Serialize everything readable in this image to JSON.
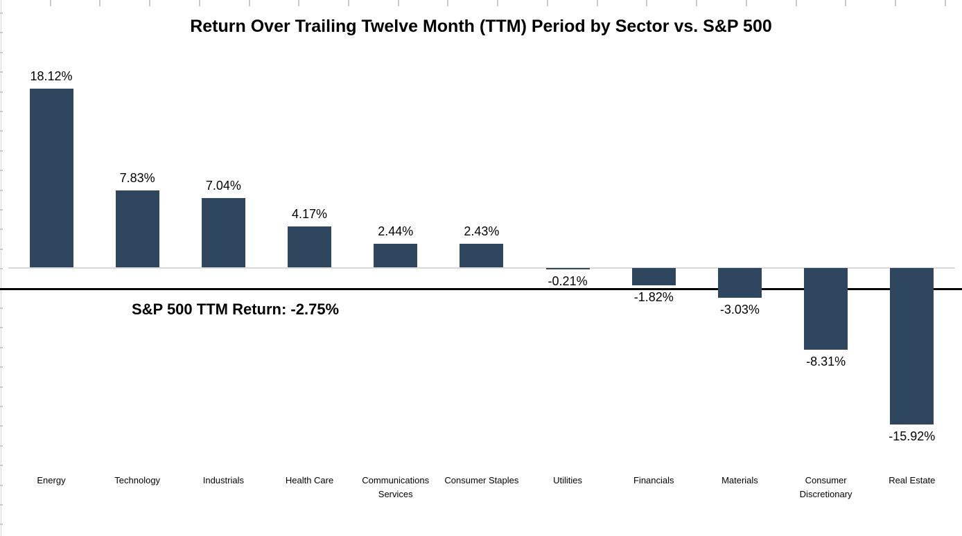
{
  "page": {
    "background": "#ffffff"
  },
  "chart_data": {
    "type": "bar",
    "title": "Return Over Trailing Twelve Month (TTM) Period by Sector vs. S&P 500",
    "categories": [
      "Energy",
      "Technology",
      "Industrials",
      "Health Care",
      "Communications Services",
      "Consumer Staples",
      "Utilities",
      "Financials",
      "Materials",
      "Consumer Discretionary",
      "Real Estate"
    ],
    "values": [
      18.12,
      7.83,
      7.04,
      4.17,
      2.44,
      2.43,
      -0.21,
      -1.82,
      -3.03,
      -8.31,
      -15.92
    ],
    "value_labels": [
      "18.12%",
      "7.83%",
      "7.04%",
      "4.17%",
      "2.44%",
      "2.43%",
      "-0.21%",
      "-1.82%",
      "-3.03%",
      "-8.31%",
      "-15.92%"
    ],
    "benchmark": {
      "label": "S&P 500 TTM Return: -2.75%",
      "value": -2.75
    },
    "bar_color": "#2F465F",
    "axis": {
      "zero_line_color": "#d9d9d9",
      "benchmark_line_color": "#000000"
    },
    "xlabel": "",
    "ylabel": "",
    "grid": "off",
    "legend": "none"
  }
}
